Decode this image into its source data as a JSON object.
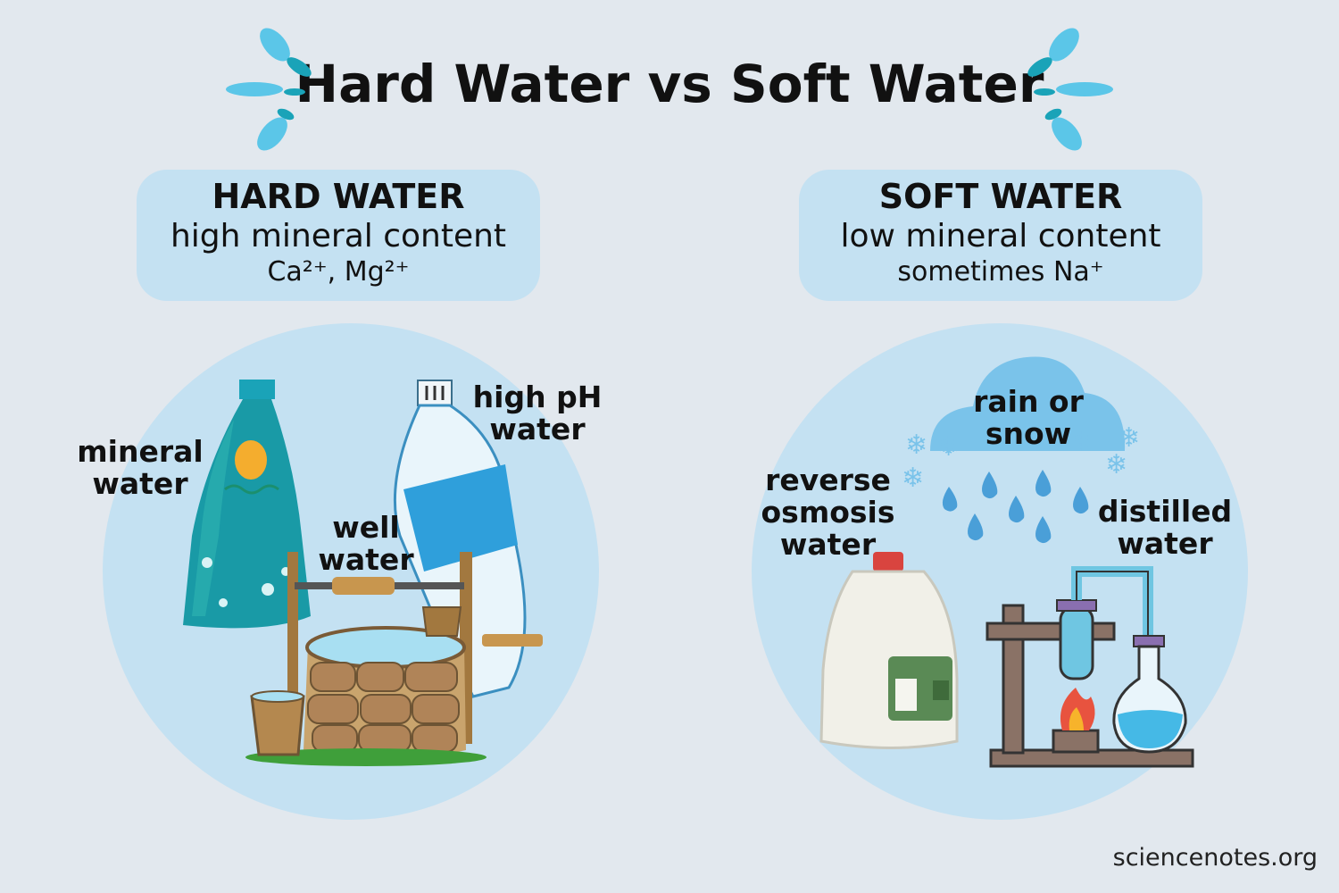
{
  "title": "Hard Water vs Soft Water",
  "hard": {
    "heading": "HARD WATER",
    "subtitle": "high mineral content",
    "ions": "Ca²⁺, Mg²⁺",
    "labels": {
      "mineral": "mineral water",
      "well": "well water",
      "ph": "high pH water"
    }
  },
  "soft": {
    "heading": "SOFT WATER",
    "subtitle": "low mineral content",
    "ions": "sometimes Na⁺",
    "labels": {
      "rain": "rain or snow",
      "ro": "reverse osmosis water",
      "distilled": "distilled water"
    }
  },
  "credit": "sciencenotes.org",
  "colors": {
    "background": "#e2e8ee",
    "panel": "#c4e1f2",
    "accent": "#5bc6e8",
    "teal": "#199aa6"
  }
}
